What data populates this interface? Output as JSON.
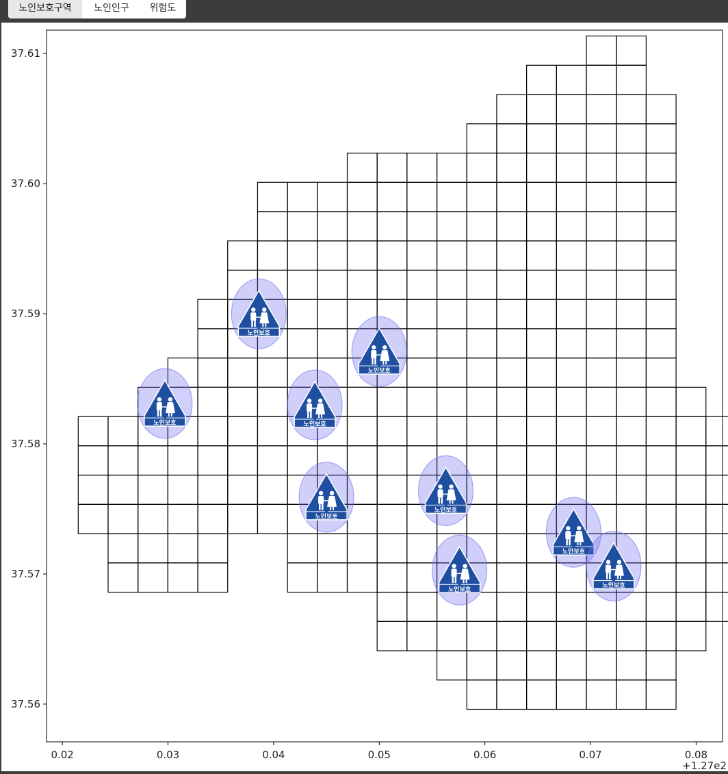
{
  "tabs": [
    {
      "label": "노인보호구역",
      "active": true
    },
    {
      "label": "노인인구",
      "active": false
    },
    {
      "label": "위험도",
      "active": false
    }
  ],
  "chart_data": {
    "type": "scatter",
    "xlim": [
      0.0185,
      0.0825
    ],
    "ylim": [
      37.5571,
      37.6118
    ],
    "x_ticks": [
      "0.02",
      "0.03",
      "0.04",
      "0.05",
      "0.06",
      "0.07",
      "0.08"
    ],
    "x_tick_values": [
      0.02,
      0.03,
      0.04,
      0.05,
      0.06,
      0.07,
      0.08
    ],
    "x_offset_label": "+1.27e2",
    "y_ticks": [
      "37.56",
      "37.57",
      "37.58",
      "37.59",
      "37.60",
      "37.61"
    ],
    "y_tick_values": [
      37.56,
      37.57,
      37.58,
      37.59,
      37.6,
      37.61
    ],
    "sign_text": "노인보호",
    "marker_fill": "#6b6bf0",
    "sign_color": "#1f4fa0",
    "grid": {
      "x0": 0.0215,
      "dx": 0.00283,
      "y0": 37.5596,
      "dy": 0.00225,
      "columns": [
        {
          "col": 0,
          "rows": [
            6,
            9
          ]
        },
        {
          "col": 1,
          "rows": [
            4,
            9
          ]
        },
        {
          "col": 2,
          "rows": [
            4,
            10
          ]
        },
        {
          "col": 3,
          "rows": [
            4,
            11
          ]
        },
        {
          "col": 4,
          "rows": [
            4,
            13
          ]
        },
        {
          "col": 5,
          "rows": [
            6,
            15
          ]
        },
        {
          "col": 6,
          "rows": [
            6,
            17
          ]
        },
        {
          "col": 7,
          "rows": [
            4,
            17
          ]
        },
        {
          "col": 8,
          "rows": [
            4,
            17
          ]
        },
        {
          "col": 9,
          "rows": [
            4,
            18
          ]
        },
        {
          "col": 10,
          "rows": [
            2,
            18
          ]
        },
        {
          "col": 11,
          "rows": [
            2,
            18
          ]
        },
        {
          "col": 12,
          "rows": [
            1,
            18
          ]
        },
        {
          "col": 13,
          "rows": [
            0,
            19
          ]
        },
        {
          "col": 14,
          "rows": [
            0,
            20
          ]
        },
        {
          "col": 15,
          "rows": [
            0,
            21
          ]
        },
        {
          "col": 16,
          "rows": [
            0,
            21
          ]
        },
        {
          "col": 17,
          "rows": [
            0,
            22
          ]
        },
        {
          "col": 18,
          "rows": [
            0,
            22
          ]
        },
        {
          "col": 19,
          "rows": [
            0,
            20
          ]
        },
        {
          "col": 20,
          "rows": [
            2,
            10
          ]
        },
        {
          "col": 21,
          "rows": [
            3,
            9
          ]
        }
      ]
    },
    "points": [
      {
        "x": 0.0297,
        "y": 37.5831
      },
      {
        "x": 0.0386,
        "y": 37.59
      },
      {
        "x": 0.0439,
        "y": 37.583
      },
      {
        "x": 0.045,
        "y": 37.5759
      },
      {
        "x": 0.05,
        "y": 37.5871
      },
      {
        "x": 0.0563,
        "y": 37.5764
      },
      {
        "x": 0.0576,
        "y": 37.5703
      },
      {
        "x": 0.0684,
        "y": 37.5732
      },
      {
        "x": 0.0722,
        "y": 37.5706
      }
    ]
  }
}
